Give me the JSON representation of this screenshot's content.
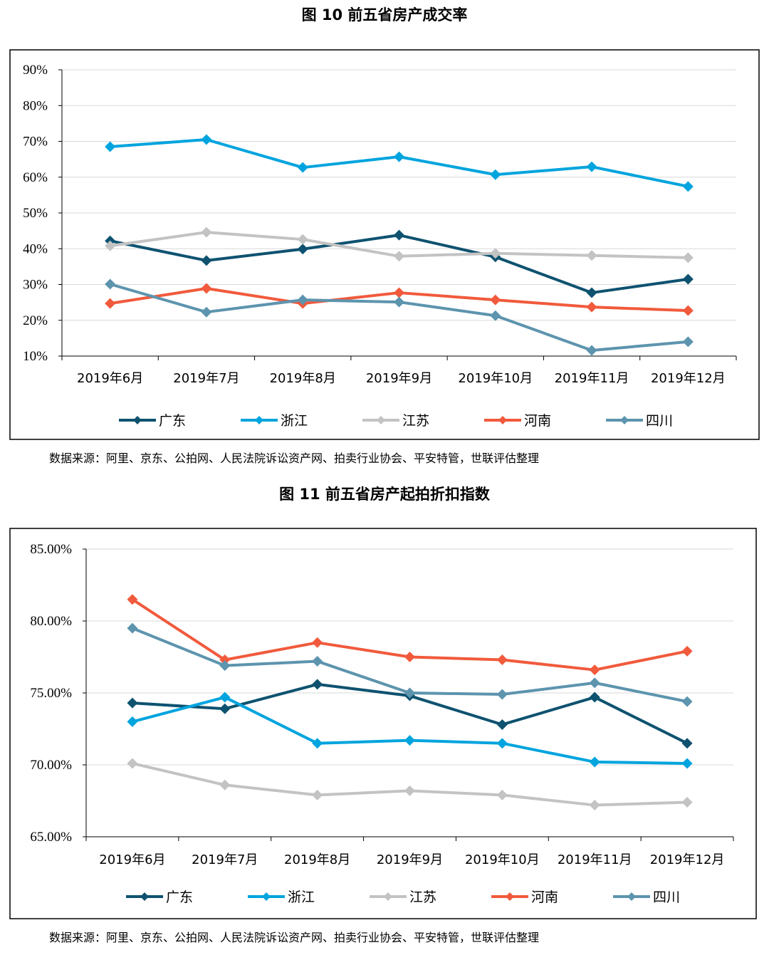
{
  "chart_data": [
    {
      "type": "line",
      "title": "图 10  前五省房产成交率",
      "categories": [
        "2019年6月",
        "2019年7月",
        "2019年8月",
        "2019年9月",
        "2019年10月",
        "2019年11月",
        "2019年12月"
      ],
      "yticks": [
        "10%",
        "20%",
        "30%",
        "40%",
        "50%",
        "60%",
        "70%",
        "80%",
        "90%"
      ],
      "ylim": [
        10,
        90
      ],
      "ystep": 10,
      "grid": true,
      "legend_position": "bottom",
      "series": [
        {
          "name": "广东",
          "color": "#0e5270",
          "values": [
            42.2,
            36.7,
            39.9,
            43.8,
            37.7,
            27.7,
            31.5
          ]
        },
        {
          "name": "浙江",
          "color": "#00a4de",
          "values": [
            68.5,
            70.5,
            62.7,
            65.7,
            60.7,
            62.9,
            57.4
          ]
        },
        {
          "name": "江苏",
          "color": "#c3c3c3",
          "values": [
            40.8,
            44.6,
            42.6,
            37.9,
            38.7,
            38.1,
            37.5
          ]
        },
        {
          "name": "河南",
          "color": "#f15a3c",
          "values": [
            24.7,
            28.9,
            24.7,
            27.7,
            25.7,
            23.7,
            22.7
          ]
        },
        {
          "name": "四川",
          "color": "#5d94ae",
          "values": [
            30.1,
            22.3,
            25.7,
            25.1,
            21.3,
            11.6,
            14.0
          ]
        }
      ],
      "source": "数据来源：阿里、京东、公拍网、人民法院诉讼资产网、拍卖行业协会、平安特管，世联评估整理"
    },
    {
      "type": "line",
      "title": "图 11  前五省房产起拍折扣指数",
      "categories": [
        "2019年6月",
        "2019年7月",
        "2019年8月",
        "2019年9月",
        "2019年10月",
        "2019年11月",
        "2019年12月"
      ],
      "yticks": [
        "65.00%",
        "70.00%",
        "75.00%",
        "80.00%",
        "85.00%"
      ],
      "ylim": [
        65,
        85
      ],
      "ystep": 5,
      "grid": true,
      "legend_position": "bottom",
      "series": [
        {
          "name": "广东",
          "color": "#0e5270",
          "values": [
            74.3,
            73.9,
            75.6,
            74.8,
            72.8,
            74.7,
            71.5
          ]
        },
        {
          "name": "浙江",
          "color": "#00a4de",
          "values": [
            73.0,
            74.7,
            71.5,
            71.7,
            71.5,
            70.2,
            70.1
          ]
        },
        {
          "name": "江苏",
          "color": "#c3c3c3",
          "values": [
            70.1,
            68.6,
            67.9,
            68.2,
            67.9,
            67.2,
            67.4
          ]
        },
        {
          "name": "河南",
          "color": "#f15a3c",
          "values": [
            81.5,
            77.3,
            78.5,
            77.5,
            77.3,
            76.6,
            77.9
          ]
        },
        {
          "name": "四川",
          "color": "#5d94ae",
          "values": [
            79.5,
            76.9,
            77.2,
            75.0,
            74.9,
            75.7,
            74.4
          ]
        }
      ],
      "source": "数据来源：阿里、京东、公拍网、人民法院诉讼资产网、拍卖行业协会、平安特管，世联评估整理"
    }
  ]
}
